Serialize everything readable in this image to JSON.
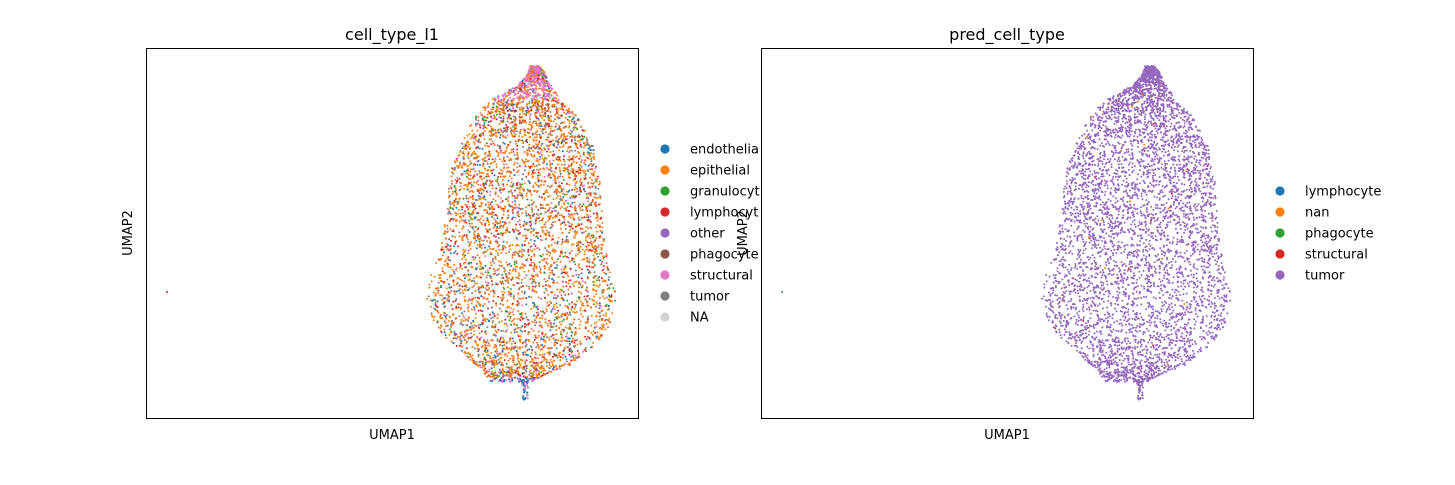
{
  "chart_data": [
    {
      "type": "scatter",
      "title": "cell_type_l1",
      "xlabel": "UMAP1",
      "ylabel": "UMAP2",
      "legend_position": "right-outside",
      "grid": false,
      "legend": [
        {
          "name": "endothelial",
          "label": "endothelia",
          "color": "#1f77b4"
        },
        {
          "name": "epithelial",
          "label": "epithelial",
          "color": "#ff7f0e"
        },
        {
          "name": "granulocyte",
          "label": "granulocyt",
          "color": "#2ca02c"
        },
        {
          "name": "lymphocyte",
          "label": "lymphocyt",
          "color": "#d62728"
        },
        {
          "name": "other",
          "label": "other",
          "color": "#9467bd"
        },
        {
          "name": "phagocyte",
          "label": "phagocyte",
          "color": "#8c564b"
        },
        {
          "name": "structural",
          "label": "structural",
          "color": "#e377c2"
        },
        {
          "name": "tumor",
          "label": "tumor",
          "color": "#7f7f7f"
        },
        {
          "name": "NA",
          "label": "NA",
          "color": "#d3d3d3"
        }
      ],
      "dominant_color": "#ff7f0e"
    },
    {
      "type": "scatter",
      "title": "pred_cell_type",
      "xlabel": "UMAP1",
      "ylabel": "UMAP2",
      "legend_position": "right-outside",
      "grid": false,
      "legend": [
        {
          "name": "lymphocyte",
          "label": "lymphocyte",
          "color": "#1f77b4"
        },
        {
          "name": "nan",
          "label": "nan",
          "color": "#ff7f0e"
        },
        {
          "name": "phagocyte",
          "label": "phagocyte",
          "color": "#2ca02c"
        },
        {
          "name": "structural",
          "label": "structural",
          "color": "#d62728"
        },
        {
          "name": "tumor",
          "label": "tumor",
          "color": "#9467bd"
        }
      ],
      "dominant_color": "#9467bd"
    }
  ]
}
